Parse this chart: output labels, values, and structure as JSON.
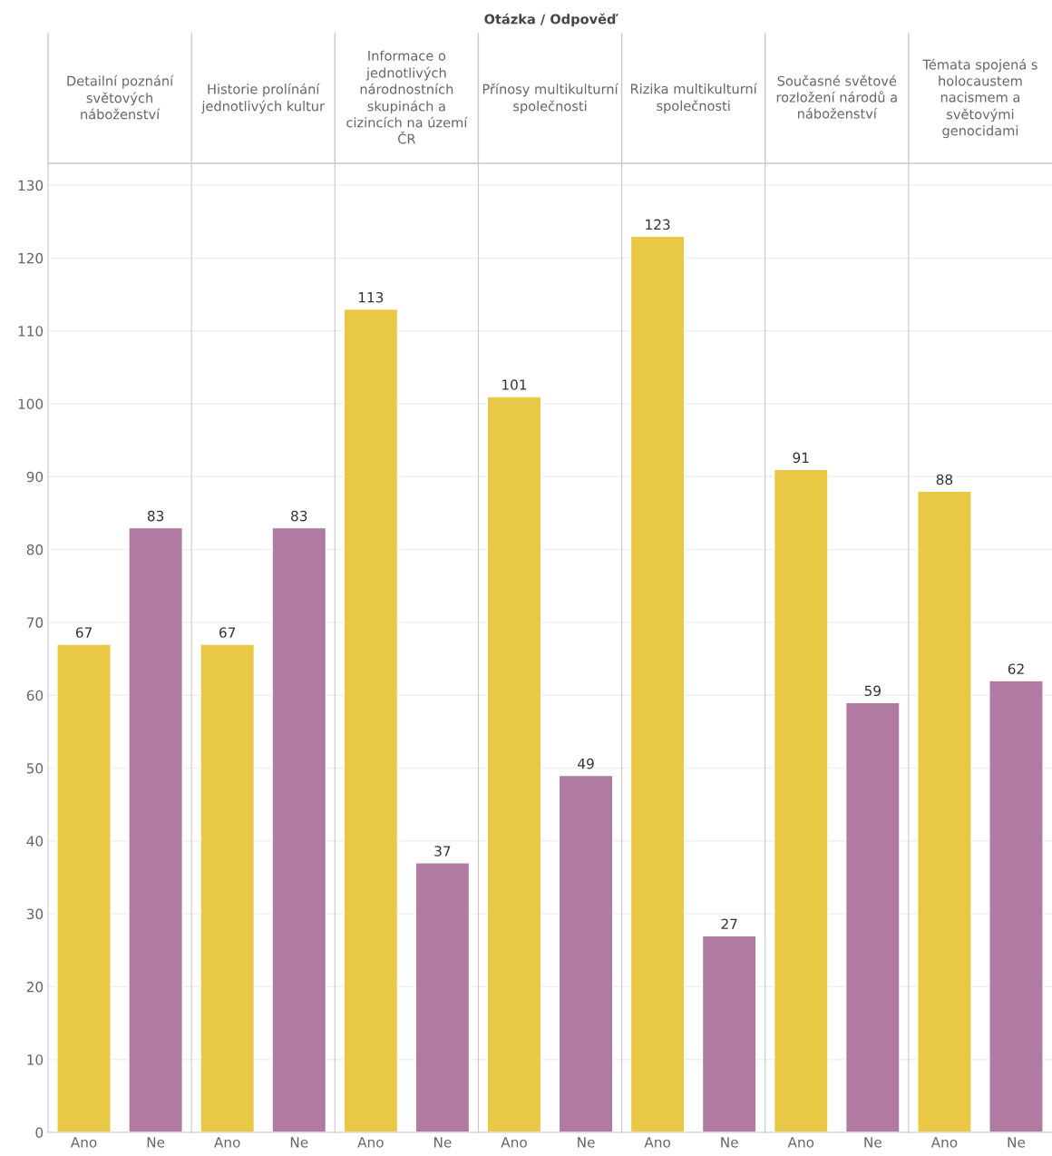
{
  "chart_data": [
    {
      "type": "bar",
      "title": "Detailní poznání světových náboženství",
      "annotations": [
        "Otázka / Odpověď"
      ],
      "categories": [
        "Ano",
        "Ne"
      ],
      "values": [
        67,
        83
      ],
      "colors": [
        "#e9c846",
        "#b07aa1"
      ],
      "ylim": [
        0,
        133
      ],
      "yticks": [
        0,
        10,
        20,
        30,
        40,
        50,
        60,
        70,
        80,
        90,
        100,
        110,
        120,
        130
      ],
      "grid": "y",
      "data_labels": true
    },
    {
      "type": "bar",
      "title": "Historie prolínání jednotlivých kultur",
      "categories": [
        "Ano",
        "Ne"
      ],
      "values": [
        67,
        83
      ],
      "colors": [
        "#e9c846",
        "#b07aa1"
      ],
      "ylim": [
        0,
        133
      ],
      "yticks": [
        0,
        10,
        20,
        30,
        40,
        50,
        60,
        70,
        80,
        90,
        100,
        110,
        120,
        130
      ],
      "grid": "y",
      "data_labels": true,
      "tick_labels": "x"
    },
    {
      "type": "bar",
      "title": "Informace o jednotlivých národnostních skupinách a cizincích na území ČR",
      "categories": [
        "Ano",
        "Ne"
      ],
      "values": [
        113,
        37
      ],
      "colors": [
        "#e9c846",
        "#b07aa1"
      ],
      "ylim": [
        0,
        133
      ],
      "yticks": [
        0,
        10,
        20,
        30,
        40,
        50,
        60,
        70,
        80,
        90,
        100,
        110,
        120,
        130
      ],
      "grid": "y",
      "data_labels": true,
      "tick_labels": "x"
    },
    {
      "type": "bar",
      "title": "Přínosy multikulturní společnosti",
      "categories": [
        "Ano",
        "Ne"
      ],
      "values": [
        101,
        49
      ],
      "colors": [
        "#e9c846",
        "#b07aa1"
      ],
      "ylim": [
        0,
        133
      ],
      "yticks": [
        0,
        10,
        20,
        30,
        40,
        50,
        60,
        70,
        80,
        90,
        100,
        110,
        120,
        130
      ],
      "grid": "y",
      "data_labels": true,
      "tick_labels": "x"
    },
    {
      "type": "bar",
      "title": "Rizika multikulturní společnosti",
      "categories": [
        "Ano",
        "Ne"
      ],
      "values": [
        123,
        27
      ],
      "colors": [
        "#e9c846",
        "#b07aa1"
      ],
      "ylim": [
        0,
        133
      ],
      "yticks": [
        0,
        10,
        20,
        30,
        40,
        50,
        60,
        70,
        80,
        90,
        100,
        110,
        120,
        130
      ],
      "grid": "y",
      "data_labels": true,
      "tick_labels": "x"
    },
    {
      "type": "bar",
      "title": "Současné světové rozložení národů a náboženství",
      "categories": [
        "Ano",
        "Ne"
      ],
      "values": [
        91,
        59
      ],
      "colors": [
        "#e9c846",
        "#b07aa1"
      ],
      "ylim": [
        0,
        133
      ],
      "yticks": [
        0,
        10,
        20,
        30,
        40,
        50,
        60,
        70,
        80,
        90,
        100,
        110,
        120,
        130
      ],
      "grid": "y",
      "data_labels": true,
      "tick_labels": "x"
    },
    {
      "type": "bar",
      "title": "Témata spojená s holocaustem nacismem a světovými genocidami",
      "categories": [
        "Ano",
        "Ne"
      ],
      "values": [
        88,
        62
      ],
      "colors": [
        "#e9c846",
        "#b07aa1"
      ],
      "ylim": [
        0,
        133
      ],
      "yticks": [
        0,
        10,
        20,
        30,
        40,
        50,
        60,
        70,
        80,
        90,
        100,
        110,
        120,
        130
      ],
      "grid": "y",
      "data_labels": true,
      "tick_labels": "x"
    }
  ]
}
